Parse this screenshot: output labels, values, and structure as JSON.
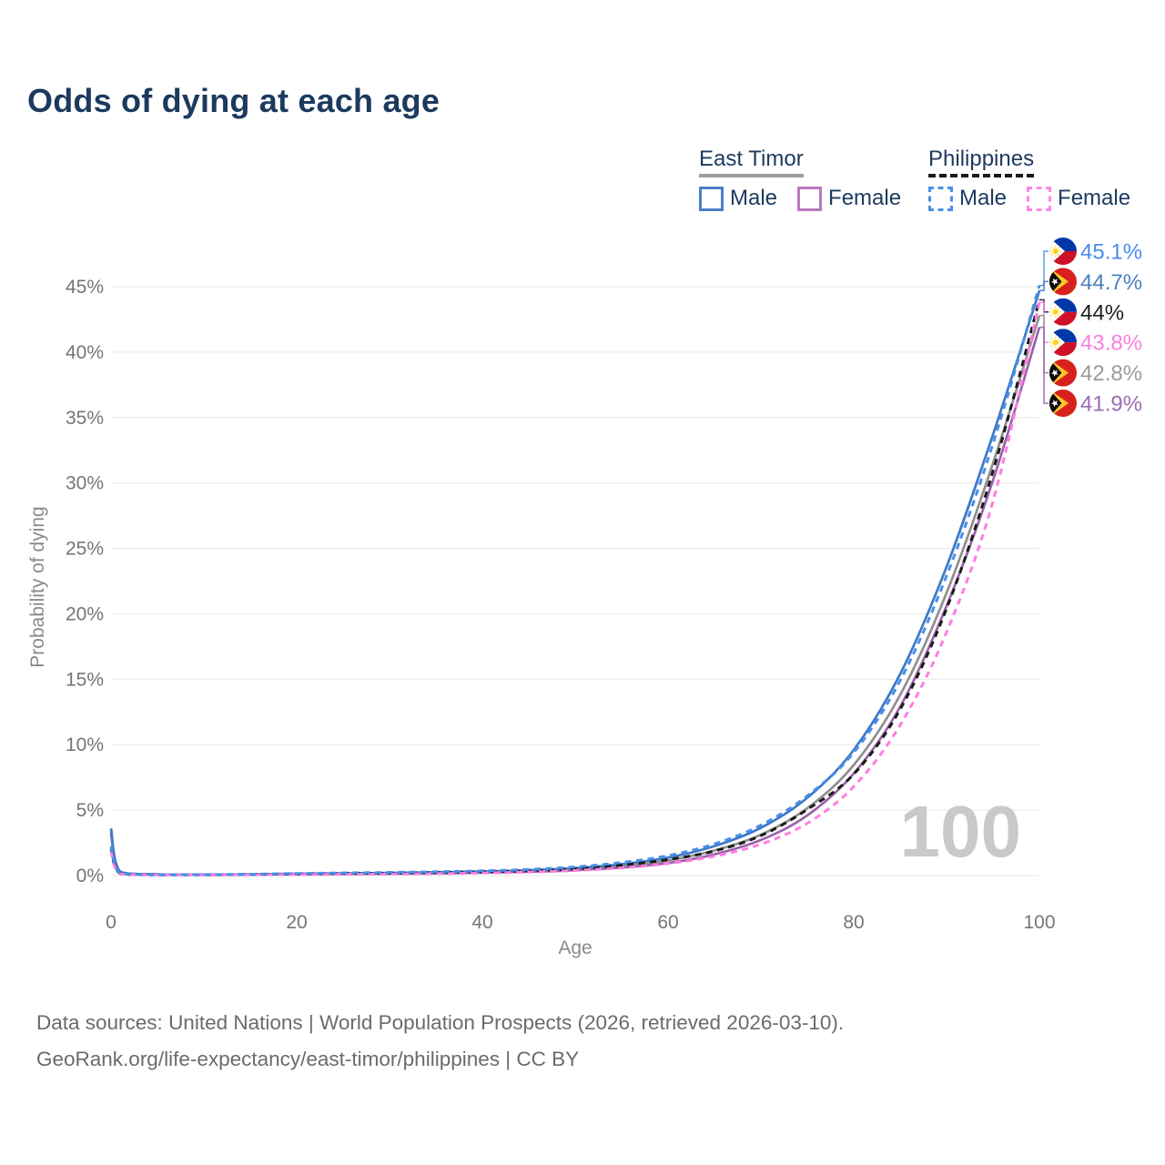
{
  "title": "Odds of dying at each age",
  "legend": {
    "groups": [
      {
        "label": "East Timor",
        "line_style": "solid",
        "underline_color": "#9e9e9e",
        "items": [
          {
            "label": "Male",
            "color": "#4a7ec4"
          },
          {
            "label": "Female",
            "color": "#bb77c2"
          }
        ]
      },
      {
        "label": "Philippines",
        "line_style": "dashed",
        "underline_color": "#1a1a1a",
        "items": [
          {
            "label": "Male",
            "color": "#4a90e8"
          },
          {
            "label": "Female",
            "color": "#ff85e4"
          }
        ]
      }
    ]
  },
  "chart_data": {
    "type": "line",
    "title": "Odds of dying at each age",
    "xlabel": "Age",
    "ylabel": "Probability of dying",
    "xlim": [
      0,
      100
    ],
    "ylim": [
      0,
      47
    ],
    "x_ticks": [
      0,
      20,
      40,
      60,
      80,
      100
    ],
    "y_ticks": [
      0,
      5,
      10,
      15,
      20,
      25,
      30,
      35,
      40,
      45
    ],
    "y_tick_suffix": "%",
    "grid": "horizontal",
    "grid_color": "#ececec",
    "axis_text_color": "#757575",
    "age_indicator": "100",
    "age_indicator_color": "#c9c9c9",
    "ages": [
      0,
      1,
      5,
      10,
      15,
      20,
      25,
      30,
      35,
      40,
      45,
      50,
      55,
      60,
      65,
      70,
      75,
      80,
      85,
      90,
      95,
      100
    ],
    "series": [
      {
        "name": "Philippines Male",
        "country": "Philippines",
        "sex": "Male",
        "flag": "ph",
        "line": "dashed",
        "color": "#4a8fe8",
        "end_label": "45.1%",
        "end_value": 45.1,
        "label_color": "#4a8cec",
        "values": [
          2.25,
          0.16,
          0.06,
          0.06,
          0.1,
          0.16,
          0.2,
          0.24,
          0.29,
          0.36,
          0.47,
          0.66,
          1.0,
          1.52,
          2.42,
          3.85,
          6.1,
          9.4,
          14.9,
          22.9,
          33.0,
          45.1
        ]
      },
      {
        "name": "East Timor Male",
        "country": "East Timor",
        "sex": "Male",
        "flag": "et",
        "line": "solid",
        "color": "#3e79c6",
        "end_label": "44.7%",
        "end_value": 44.7,
        "label_color": "#4c80be",
        "values": [
          3.6,
          0.3,
          0.1,
          0.08,
          0.1,
          0.14,
          0.17,
          0.2,
          0.25,
          0.31,
          0.41,
          0.57,
          0.87,
          1.38,
          2.25,
          3.65,
          5.95,
          9.6,
          15.4,
          23.6,
          33.7,
          44.7
        ]
      },
      {
        "name": "Philippines Both sexes",
        "country": "Philippines",
        "sex": "Both",
        "flag": "ph",
        "line": "dashed",
        "color": "#1b1b1b",
        "end_label": "44%",
        "end_value": 44.0,
        "label_color": "#1f1f1f",
        "values": [
          2.05,
          0.14,
          0.05,
          0.05,
          0.08,
          0.12,
          0.15,
          0.18,
          0.22,
          0.28,
          0.37,
          0.52,
          0.8,
          1.22,
          1.88,
          3.05,
          5.05,
          7.75,
          12.7,
          20.4,
          30.9,
          44.0
        ]
      },
      {
        "name": "Philippines Female",
        "country": "Philippines",
        "sex": "Female",
        "flag": "ph",
        "line": "dashed",
        "color": "#ff7de2",
        "end_label": "43.8%",
        "end_value": 43.8,
        "label_color": "#f980e2",
        "values": [
          1.85,
          0.12,
          0.04,
          0.04,
          0.06,
          0.08,
          0.1,
          0.12,
          0.15,
          0.2,
          0.27,
          0.39,
          0.59,
          0.92,
          1.48,
          2.4,
          4.0,
          6.8,
          11.5,
          18.6,
          28.6,
          43.8
        ]
      },
      {
        "name": "East Timor Both sexes",
        "country": "East Timor",
        "sex": "Both",
        "flag": "et",
        "line": "solid",
        "color": "#8f8f8f",
        "end_label": "42.8%",
        "end_value": 42.8,
        "label_color": "#9b9b9b",
        "values": [
          3.4,
          0.28,
          0.09,
          0.07,
          0.09,
          0.12,
          0.14,
          0.17,
          0.21,
          0.26,
          0.35,
          0.48,
          0.73,
          1.16,
          1.92,
          3.12,
          5.15,
          8.45,
          13.8,
          21.6,
          31.5,
          42.8
        ]
      },
      {
        "name": "East Timor Female",
        "country": "East Timor",
        "sex": "Female",
        "flag": "et",
        "line": "solid",
        "color": "#9c61ab",
        "end_label": "41.9%",
        "end_value": 41.9,
        "label_color": "#9c6bb0",
        "values": [
          3.2,
          0.26,
          0.08,
          0.06,
          0.07,
          0.1,
          0.12,
          0.14,
          0.17,
          0.22,
          0.29,
          0.41,
          0.61,
          0.96,
          1.62,
          2.72,
          4.6,
          7.8,
          12.9,
          20.6,
          30.2,
          41.9
        ]
      }
    ],
    "flag_colors": {
      "ph": {
        "blue": "#0038a8",
        "red": "#ce1126",
        "yellow": "#fcd116",
        "white": "#ffffff"
      },
      "et": {
        "red": "#d8211c",
        "yellow": "#ffc726",
        "black": "#0b0b0b",
        "white": "#ffffff"
      }
    }
  },
  "footer": {
    "line1": "Data sources: United Nations | World Population Prospects (2026, retrieved 2026-03-10).",
    "line2": "GeoRank.org/life-expectancy/east-timor/philippines | CC BY"
  }
}
